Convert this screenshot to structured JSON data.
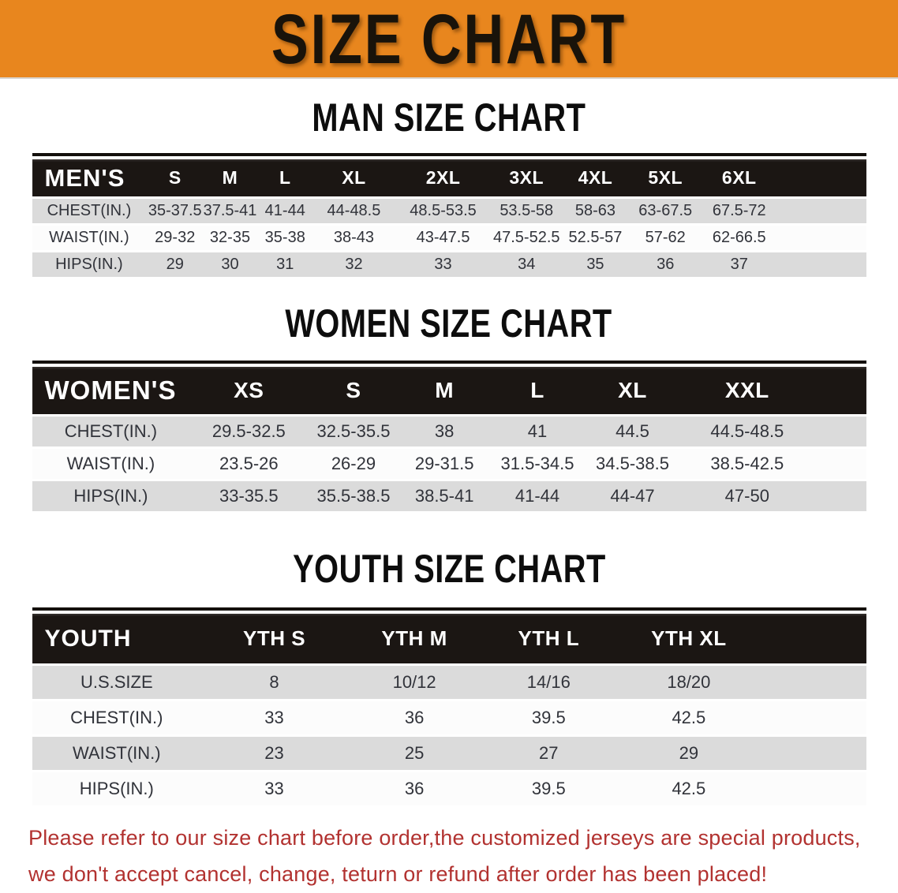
{
  "banner": {
    "title": "SIZE CHART",
    "bg_color": "#E8861E",
    "text_color": "#19130A"
  },
  "sections": [
    {
      "heading": "MAN SIZE CHART",
      "table": {
        "header_label": "MEN'S",
        "columns": [
          "S",
          "M",
          "L",
          "XL",
          "2XL",
          "3XL",
          "4XL",
          "5XL",
          "6XL"
        ],
        "rows": [
          {
            "label": "CHEST(IN.)",
            "values": [
              "35-37.5",
              "37.5-41",
              "41-44",
              "44-48.5",
              "48.5-53.5",
              "53.5-58",
              "58-63",
              "63-67.5",
              "67.5-72"
            ]
          },
          {
            "label": "WAIST(IN.)",
            "values": [
              "29-32",
              "32-35",
              "35-38",
              "38-43",
              "43-47.5",
              "47.5-52.5",
              "52.5-57",
              "57-62",
              "62-66.5"
            ]
          },
          {
            "label": "HIPS(IN.)",
            "values": [
              "29",
              "30",
              "31",
              "32",
              "33",
              "34",
              "35",
              "36",
              "37"
            ]
          }
        ]
      }
    },
    {
      "heading": "WOMEN SIZE CHART",
      "table": {
        "header_label": "WOMEN'S",
        "columns": [
          "XS",
          "S",
          "M",
          "L",
          "XL",
          "XXL"
        ],
        "rows": [
          {
            "label": "CHEST(IN.)",
            "values": [
              "29.5-32.5",
              "32.5-35.5",
              "38",
              "41",
              "44.5",
              "44.5-48.5"
            ]
          },
          {
            "label": "WAIST(IN.)",
            "values": [
              "23.5-26",
              "26-29",
              "29-31.5",
              "31.5-34.5",
              "34.5-38.5",
              "38.5-42.5"
            ]
          },
          {
            "label": "HIPS(IN.)",
            "values": [
              "33-35.5",
              "35.5-38.5",
              "38.5-41",
              "41-44",
              "44-47",
              "47-50"
            ]
          }
        ]
      }
    },
    {
      "heading": "YOUTH SIZE CHART",
      "table": {
        "header_label": "YOUTH",
        "columns": [
          "YTH S",
          "YTH M",
          "YTH L",
          "YTH XL"
        ],
        "rows": [
          {
            "label": "U.S.SIZE",
            "values": [
              "8",
              "10/12",
              "14/16",
              "18/20"
            ]
          },
          {
            "label": "CHEST(IN.)",
            "values": [
              "33",
              "36",
              "39.5",
              "42.5"
            ]
          },
          {
            "label": "WAIST(IN.)",
            "values": [
              "23",
              "25",
              "27",
              "29"
            ]
          },
          {
            "label": "HIPS(IN.)",
            "values": [
              "33",
              "36",
              "39.5",
              "42.5"
            ]
          }
        ]
      }
    }
  ],
  "disclaimer": {
    "line1": "Please refer to our size chart before order,the customized jerseys are special products,",
    "line2": "we don't accept cancel, change, teturn or refund after order has been placed!",
    "color": "#B23230"
  },
  "table_colors": {
    "header_bar": "#1B1613",
    "row_gray": "#DBDBDB",
    "row_white": "#FCFCFC",
    "value_text": "#31333A"
  }
}
